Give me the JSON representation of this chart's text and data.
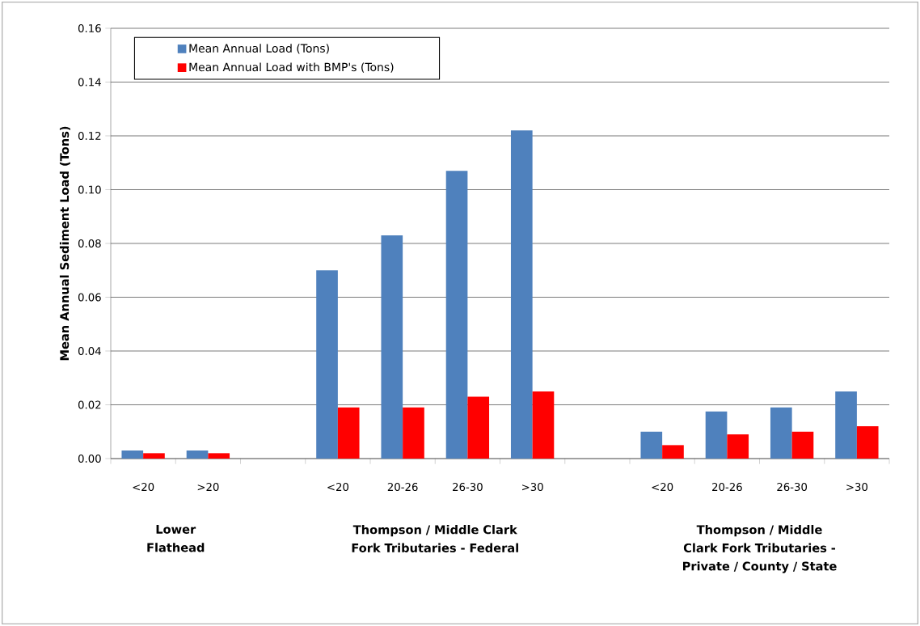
{
  "chart_data": {
    "type": "bar",
    "ylabel": "Mean Annual Sediment Load (Tons)",
    "categories": [
      "<20",
      ">20",
      null,
      "<20",
      "20-26",
      "26-30",
      ">30",
      null,
      "<20",
      "20-26",
      "26-30",
      ">30"
    ],
    "series": [
      {
        "name": "Mean Annual Load (Tons)",
        "color": "#4f81bd",
        "values": [
          0.003,
          0.003,
          null,
          0.07,
          0.083,
          0.107,
          0.122,
          null,
          0.01,
          0.0175,
          0.019,
          0.025
        ]
      },
      {
        "name": "Mean Annual Load with BMP's (Tons)",
        "color": "#ff0000",
        "values": [
          0.002,
          0.002,
          null,
          0.019,
          0.019,
          0.023,
          0.025,
          null,
          0.005,
          0.009,
          0.01,
          0.012
        ]
      }
    ],
    "ylim": [
      0,
      0.16
    ],
    "yticks": [
      {
        "value": 0,
        "label": "0.00"
      },
      {
        "value": 0.02,
        "label": "0.02"
      },
      {
        "value": 0.04,
        "label": "0.04"
      },
      {
        "value": 0.06,
        "label": "0.06"
      },
      {
        "value": 0.08,
        "label": "0.08"
      },
      {
        "value": 0.1,
        "label": "0.10"
      },
      {
        "value": 0.12,
        "label": "0.12"
      },
      {
        "value": 0.14,
        "label": "0.14"
      },
      {
        "value": 0.16,
        "label": "0.16"
      }
    ],
    "grid": "y",
    "legend": "top left",
    "annotations": [
      "Lower Flathead",
      "Thompson / Middle Clark Fork Tributaries - Federal",
      "Thompson / Middle Clark Fork Tributaries - Private / County / State"
    ]
  }
}
